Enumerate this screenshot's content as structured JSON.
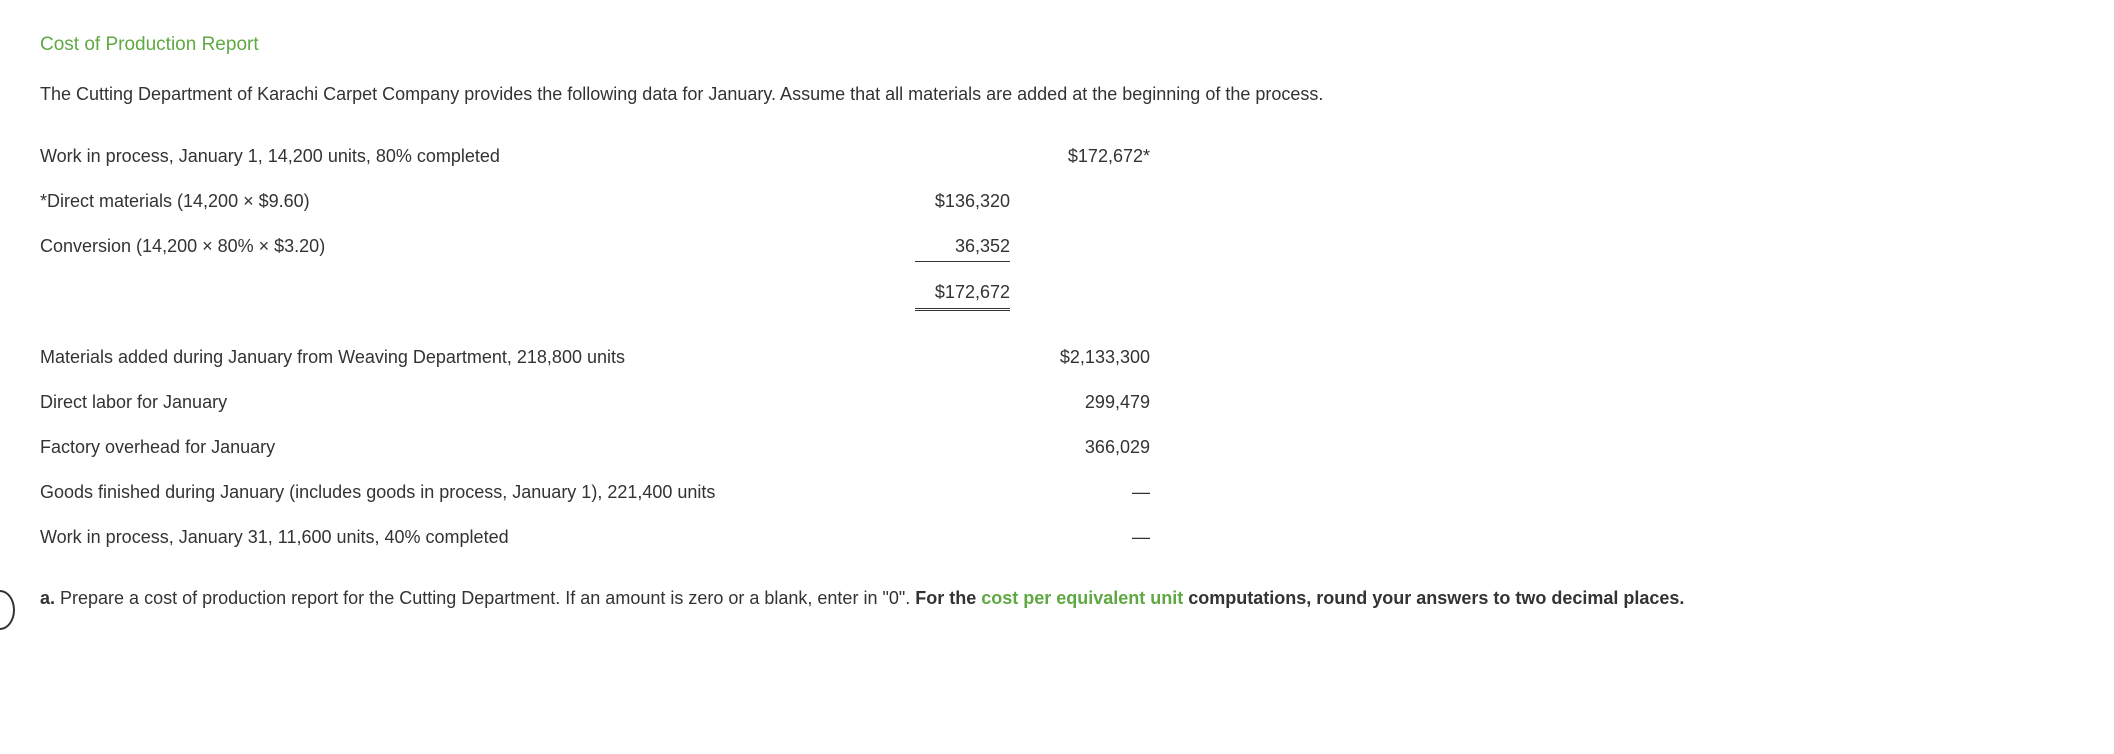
{
  "title": "Cost of Production Report",
  "intro": "The Cutting Department of Karachi Carpet Company provides the following data for January. Assume that all materials are added at the beginning of the process.",
  "rows": {
    "wip_jan1": {
      "label": "Work in process, January 1, 14,200 units, 80% completed",
      "val2": "$172,672*"
    },
    "direct_materials": {
      "label": "*Direct materials (14,200 × $9.60)",
      "val1": "$136,320"
    },
    "conversion": {
      "label": "Conversion (14,200 × 80% × $3.20)",
      "val1": "36,352"
    },
    "subtotal": {
      "val1": "$172,672"
    },
    "materials_added": {
      "label": "Materials added during January from Weaving Department, 218,800 units",
      "val2": "$2,133,300"
    },
    "direct_labor": {
      "label": "Direct labor for January",
      "val2": "299,479"
    },
    "factory_overhead": {
      "label": "Factory overhead for January",
      "val2": "366,029"
    },
    "goods_finished": {
      "label": "Goods finished during January (includes goods in process, January 1), 221,400 units",
      "val2": "—"
    },
    "wip_jan31": {
      "label": "Work in process, January 31, 11,600 units, 40% completed",
      "val2": "—"
    }
  },
  "question": {
    "letter": "a.",
    "text_part1": "  Prepare a cost of production report for the Cutting Department. If an amount is zero or a blank, enter in \"0\". ",
    "bold_part1": "For the ",
    "green_part": "cost per equivalent unit",
    "bold_part2": " computations, round your answers to two decimal places."
  }
}
